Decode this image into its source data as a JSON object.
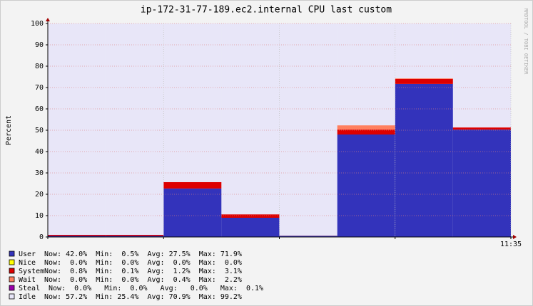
{
  "chart_data": {
    "type": "stepped-area",
    "title": "ip-172-31-77-189.ec2.internal CPU last custom",
    "y_label": "Percent",
    "watermark": "RRDTOOL / TOBI OETIKER",
    "stacked": true,
    "x": [
      0,
      1,
      2,
      3,
      4,
      5,
      6,
      7
    ],
    "xlim": [
      0,
      8
    ],
    "xticks": [
      {
        "value": 2,
        "label": null
      },
      {
        "value": 4,
        "label": null
      },
      {
        "value": 6,
        "label": null
      },
      {
        "value": 8,
        "label": "11:35"
      }
    ],
    "ylim": [
      0,
      100
    ],
    "yticks": [
      0,
      10,
      20,
      30,
      40,
      50,
      60,
      70,
      80,
      90,
      100
    ],
    "grid": true,
    "series": [
      {
        "name": "User",
        "color": "#3333bb",
        "stats": "Now: 42.0%  Min:  0.5%  Avg: 27.5%  Max: 71.9%",
        "values": [
          0.5,
          0.5,
          22.7,
          9.0,
          0.5,
          48.0,
          71.7,
          50.3
        ]
      },
      {
        "name": "Nice",
        "color": "#ffff00",
        "stats": "Now:  0.0%  Min:  0.0%  Avg:  0.0%  Max:  0.0%",
        "values": [
          0,
          0,
          0,
          0,
          0,
          0,
          0,
          0
        ]
      },
      {
        "name": "System",
        "color": "#dd0000",
        "stats": "Now:  0.8%  Min:  0.1%  Avg:  1.2%  Max:  3.1%",
        "values": [
          0.5,
          0.5,
          3.0,
          1.6,
          0.1,
          2.3,
          2.3,
          1.0
        ]
      },
      {
        "name": "Wait",
        "color": "#ff8060",
        "stats": "Now:  0.0%  Min:  0.0%  Avg:  0.4%  Max:  2.2%",
        "values": [
          0,
          0,
          0,
          0,
          0,
          2.0,
          0.3,
          0
        ]
      },
      {
        "name": "Steal",
        "color": "#9900aa",
        "stats": " Now:  0.0%   Min:  0.0%   Avg:   0.0%   Max:  0.1%",
        "values": [
          0,
          0,
          0,
          0,
          0,
          0,
          0,
          0
        ]
      },
      {
        "name": "Idle",
        "color": "#e8e6f8",
        "stats": "Now: 57.2%  Min: 25.4%  Avg: 70.9%  Max: 99.2%",
        "values": [
          99.0,
          99.0,
          74.3,
          89.4,
          99.4,
          47.7,
          25.7,
          48.7
        ]
      }
    ]
  }
}
